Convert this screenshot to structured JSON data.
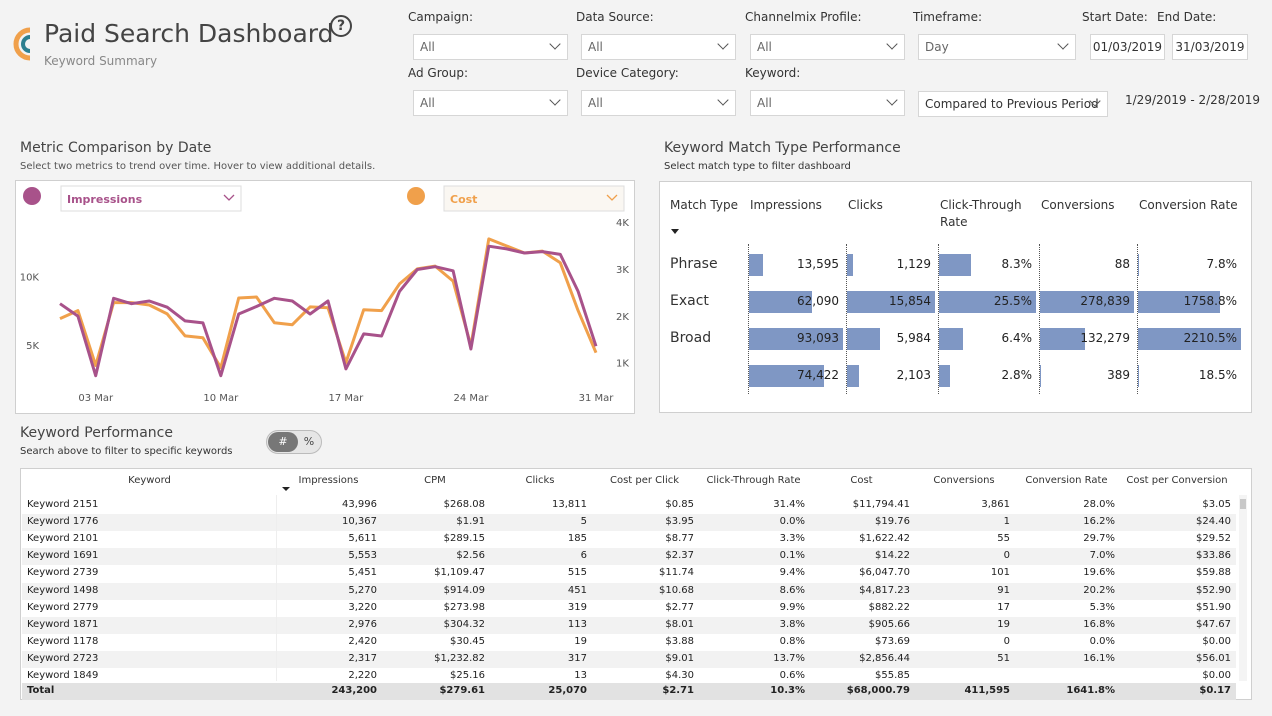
{
  "header": {
    "title": "Paid Search Dashboard",
    "subtitle": "Keyword Summary",
    "help": "?"
  },
  "filters": [
    {
      "label": "Campaign:",
      "value": "All"
    },
    {
      "label": "Data Source:",
      "value": "All"
    },
    {
      "label": "Channelmix Profile:",
      "value": "All"
    },
    {
      "label": "Timeframe:",
      "value": "Day"
    },
    {
      "label": "Start Date:",
      "value": "01/03/2019"
    },
    {
      "label": "End Date:",
      "value": "31/03/2019"
    },
    {
      "label": "Ad Group:",
      "value": "All"
    },
    {
      "label": "Device Category:",
      "value": "All"
    },
    {
      "label": "Keyword:",
      "value": "All"
    }
  ],
  "comparison": "Compared to Previous Period",
  "comparison_range": "1/29/2019 - 2/28/2019",
  "metric_panel": {
    "title": "Metric Comparison by Date",
    "subtitle": "Select two metrics to trend over time. Hover to view additional details."
  },
  "chart_data": {
    "type": "line",
    "categories": [
      null,
      null,
      "03 Mar",
      null,
      null,
      null,
      null,
      null,
      null,
      "10 Mar",
      null,
      null,
      null,
      null,
      null,
      null,
      "17 Mar",
      null,
      null,
      null,
      null,
      null,
      null,
      "24 Mar",
      null,
      null,
      null,
      null,
      null,
      null,
      "31 Mar"
    ],
    "series": [
      {
        "name": "Impressions",
        "color": "#a8528a",
        "values": [
          8000,
          7100,
          2750,
          8400,
          8000,
          8200,
          7750,
          6750,
          6600,
          2750,
          7250,
          7800,
          8400,
          8200,
          7250,
          8200,
          3250,
          5800,
          5650,
          8900,
          10500,
          10700,
          10400,
          4700,
          12200,
          12000,
          11700,
          11800,
          11600,
          8900,
          4900
        ]
      },
      {
        "name": "Cost",
        "color": "#f0a04b",
        "axis": "y2",
        "values": [
          1940,
          2110,
          940,
          2280,
          2280,
          2230,
          2040,
          1570,
          1530,
          890,
          2380,
          2400,
          1850,
          1810,
          2190,
          2170,
          1000,
          2130,
          2110,
          2680,
          3000,
          3060,
          2740,
          1360,
          3640,
          3490,
          3340,
          3380,
          3130,
          2110,
          1210
        ]
      }
    ],
    "ylim": [
      2000,
      14400
    ],
    "yticks": [
      {
        "value": 5000,
        "label": "5K"
      },
      {
        "value": 10000,
        "label": "10K"
      }
    ],
    "y2lim": [
      500,
      4130
    ],
    "y2ticks": [
      {
        "value": 1000,
        "label": "1K"
      },
      {
        "value": 2000,
        "label": "2K"
      },
      {
        "value": 3000,
        "label": "3K"
      },
      {
        "value": 4000,
        "label": "4K"
      }
    ]
  },
  "match_type": {
    "title": "Keyword Match Type Performance",
    "subtitle": "Select match type to filter dashboard",
    "columns": [
      "Match Type",
      "Impressions",
      "Clicks",
      "Click-Through Rate",
      "Conversions",
      "Conversion Rate"
    ],
    "rows": [
      {
        "label": "Phrase",
        "cells": [
          "13,595",
          "1,129",
          "8.3%",
          "88",
          "7.8%"
        ]
      },
      {
        "label": "Exact",
        "cells": [
          "62,090",
          "15,854",
          "25.5%",
          "278,839",
          "1758.8%"
        ]
      },
      {
        "label": "Broad",
        "cells": [
          "93,093",
          "5,984",
          "6.4%",
          "132,279",
          "2210.5%"
        ]
      },
      {
        "label": null,
        "cells": [
          "74,422",
          "2,103",
          "2.8%",
          "389",
          "18.5%"
        ]
      }
    ]
  },
  "keyword_performance": {
    "title": "Keyword Performance",
    "subtitle": "Search above to filter to specific keywords",
    "toggle": [
      "#",
      "%"
    ],
    "columns": [
      "Keyword",
      "Impressions",
      "CPM",
      "Clicks",
      "Cost per Click",
      "Click-Through Rate",
      "Cost",
      "Conversions",
      "Conversion Rate",
      "Cost per Conversion"
    ],
    "rows": [
      [
        "Keyword 2151",
        "43,996",
        "$268.08",
        "13,811",
        "$0.85",
        "31.4%",
        "$11,794.41",
        "3,861",
        "28.0%",
        "$3.05"
      ],
      [
        "Keyword 1776",
        "10,367",
        "$1.91",
        "5",
        "$3.95",
        "0.0%",
        "$19.76",
        "1",
        "16.2%",
        "$24.40"
      ],
      [
        "Keyword 2101",
        "5,611",
        "$289.15",
        "185",
        "$8.77",
        "3.3%",
        "$1,622.42",
        "55",
        "29.7%",
        "$29.52"
      ],
      [
        "Keyword 1691",
        "5,553",
        "$2.56",
        "6",
        "$2.37",
        "0.1%",
        "$14.22",
        "0",
        "7.0%",
        "$33.86"
      ],
      [
        "Keyword 2739",
        "5,451",
        "$1,109.47",
        "515",
        "$11.74",
        "9.4%",
        "$6,047.70",
        "101",
        "19.6%",
        "$59.88"
      ],
      [
        "Keyword 1498",
        "5,270",
        "$914.09",
        "451",
        "$10.68",
        "8.6%",
        "$4,817.23",
        "91",
        "20.2%",
        "$52.90"
      ],
      [
        "Keyword 2779",
        "3,220",
        "$273.98",
        "319",
        "$2.77",
        "9.9%",
        "$882.22",
        "17",
        "5.3%",
        "$51.90"
      ],
      [
        "Keyword 1871",
        "2,976",
        "$304.32",
        "113",
        "$8.01",
        "3.8%",
        "$905.66",
        "19",
        "16.8%",
        "$47.67"
      ],
      [
        "Keyword 1178",
        "2,420",
        "$30.45",
        "19",
        "$3.88",
        "0.8%",
        "$73.69",
        "0",
        "0.0%",
        "$0.00"
      ],
      [
        "Keyword 2723",
        "2,317",
        "$1,232.82",
        "317",
        "$9.01",
        "13.7%",
        "$2,856.44",
        "51",
        "16.1%",
        "$56.01"
      ],
      [
        "Keyword 1849",
        "2,220",
        "$25.16",
        "13",
        "$4.30",
        "0.6%",
        "$55.85",
        null,
        null,
        "$0.00"
      ]
    ],
    "total": [
      "Total",
      "243,200",
      "$279.61",
      "25,070",
      "$2.71",
      "10.3%",
      "$68,000.79",
      "411,595",
      "1641.8%",
      "$0.17"
    ]
  }
}
